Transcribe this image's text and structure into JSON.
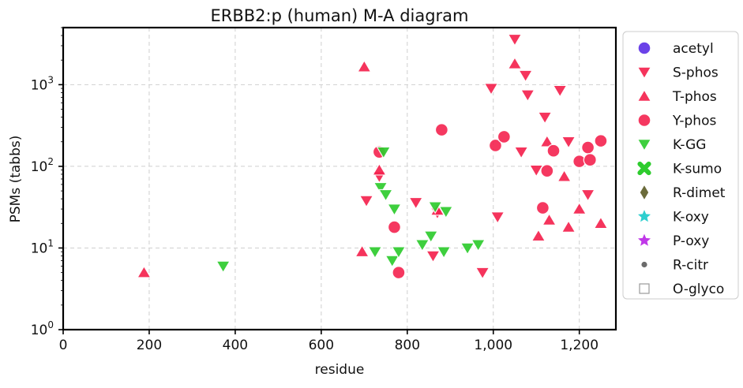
{
  "chart_data": {
    "type": "scatter",
    "title": "ERBB2:p (human) M-A diagram",
    "xlabel": "residue",
    "ylabel": "PSMs (tabbs)",
    "xlim": [
      0,
      1285
    ],
    "ylim": [
      1,
      5000
    ],
    "yscale": "log",
    "grid": true,
    "legend_position": "outside-right",
    "x_ticks": [
      {
        "value": 0,
        "label": "0"
      },
      {
        "value": 200,
        "label": "200"
      },
      {
        "value": 400,
        "label": "400"
      },
      {
        "value": 600,
        "label": "600"
      },
      {
        "value": 800,
        "label": "800"
      },
      {
        "value": 1000,
        "label": "1,000"
      },
      {
        "value": 1200,
        "label": "1,200"
      }
    ],
    "y_ticks": [
      {
        "value": 1,
        "base": "10",
        "exp": "0"
      },
      {
        "value": 10,
        "base": "10",
        "exp": "1"
      },
      {
        "value": 100,
        "base": "10",
        "exp": "2"
      },
      {
        "value": 1000,
        "base": "10",
        "exp": "3"
      }
    ],
    "series": [
      {
        "name": "acetyl",
        "marker": "circle",
        "color": "#5b2ee6",
        "points": []
      },
      {
        "name": "S-phos",
        "marker": "triangle-down",
        "color": "#f5234f",
        "points": [
          [
            705,
            38
          ],
          [
            735,
            75
          ],
          [
            820,
            36
          ],
          [
            860,
            8
          ],
          [
            870,
            27
          ],
          [
            975,
            5
          ],
          [
            995,
            900
          ],
          [
            1010,
            24
          ],
          [
            1050,
            3600
          ],
          [
            1065,
            150
          ],
          [
            1075,
            1300
          ],
          [
            1080,
            750
          ],
          [
            1100,
            90
          ],
          [
            1120,
            400
          ],
          [
            1155,
            850
          ],
          [
            1175,
            200
          ],
          [
            1220,
            45
          ]
        ]
      },
      {
        "name": "T-phos",
        "marker": "triangle-up",
        "color": "#f5234f",
        "points": [
          [
            188,
            5
          ],
          [
            700,
            1650
          ],
          [
            695,
            9
          ],
          [
            735,
            90
          ],
          [
            870,
            29
          ],
          [
            1050,
            1800
          ],
          [
            1105,
            14
          ],
          [
            1125,
            200
          ],
          [
            1130,
            22
          ],
          [
            1165,
            75
          ],
          [
            1175,
            18
          ],
          [
            1200,
            30
          ],
          [
            1250,
            20
          ]
        ]
      },
      {
        "name": "Y-phos",
        "marker": "circle",
        "color": "#f5234f",
        "points": [
          [
            735,
            150
          ],
          [
            770,
            18
          ],
          [
            780,
            5
          ],
          [
            880,
            280
          ],
          [
            1005,
            180
          ],
          [
            1025,
            230
          ],
          [
            1115,
            31
          ],
          [
            1125,
            88
          ],
          [
            1140,
            155
          ],
          [
            1200,
            115
          ],
          [
            1220,
            170
          ],
          [
            1225,
            120
          ],
          [
            1250,
            205
          ]
        ]
      },
      {
        "name": "K-GG",
        "marker": "triangle-down",
        "color": "#2ecc2e",
        "points": [
          [
            372,
            6
          ],
          [
            725,
            9
          ],
          [
            738,
            55
          ],
          [
            745,
            150
          ],
          [
            750,
            45
          ],
          [
            765,
            7
          ],
          [
            770,
            30
          ],
          [
            780,
            9
          ],
          [
            835,
            11
          ],
          [
            855,
            14
          ],
          [
            865,
            32
          ],
          [
            885,
            9
          ],
          [
            890,
            28
          ],
          [
            940,
            10
          ],
          [
            965,
            11
          ]
        ]
      },
      {
        "name": "K-sumo",
        "marker": "x",
        "color": "#2ecc2e",
        "points": []
      },
      {
        "name": "R-dimet",
        "marker": "diamond",
        "color": "#6b6b3a",
        "points": []
      },
      {
        "name": "K-oxy",
        "marker": "star",
        "color": "#2ecfcf",
        "points": []
      },
      {
        "name": "P-oxy",
        "marker": "star",
        "color": "#c038e8",
        "points": []
      },
      {
        "name": "R-citr",
        "marker": "dot",
        "color": "#6b6b6b",
        "points": []
      },
      {
        "name": "O-glyco",
        "marker": "square-open",
        "color": "#9a9a9a",
        "points": []
      }
    ]
  }
}
